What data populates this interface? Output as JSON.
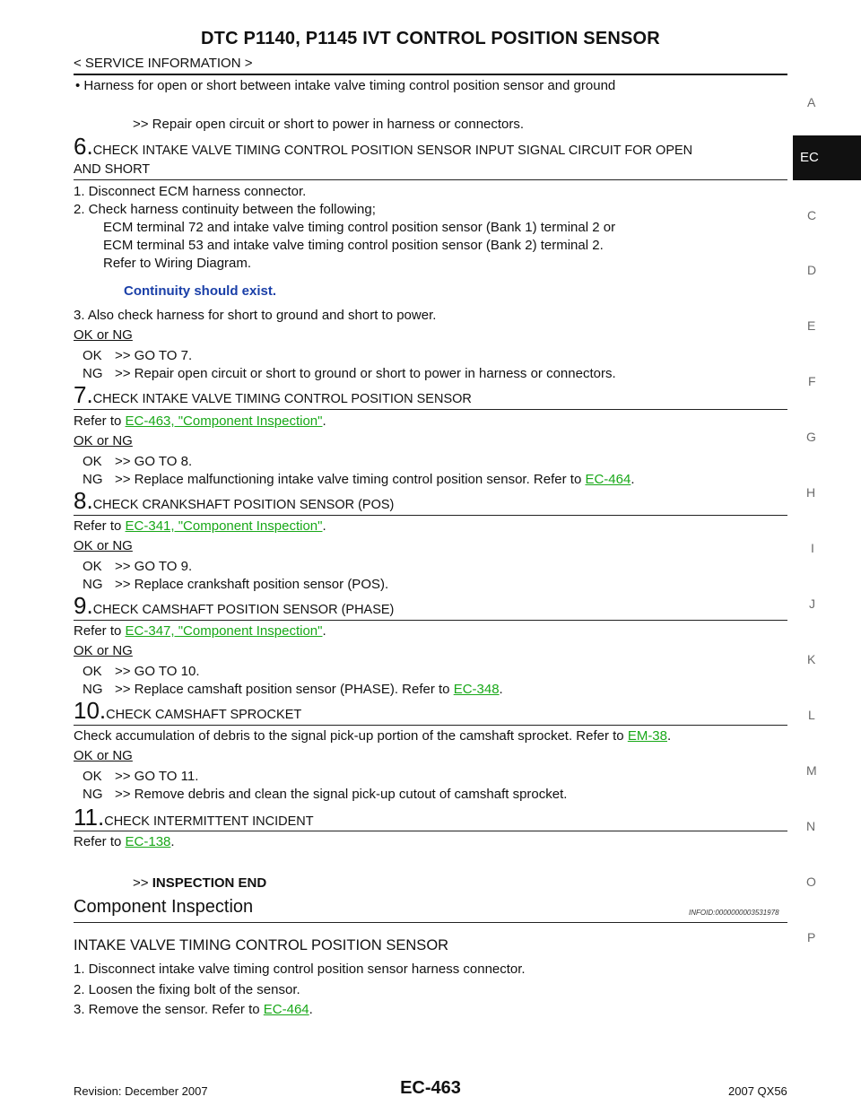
{
  "header": {
    "title": "DTC P1140, P1145 IVT CONTROL POSITION SENSOR",
    "section": "< SERVICE INFORMATION >"
  },
  "sidebar": {
    "letters": [
      "A",
      "EC",
      "C",
      "D",
      "E",
      "F",
      "G",
      "H",
      "I",
      "J",
      "K",
      "L",
      "M",
      "N",
      "O",
      "P"
    ],
    "active": "EC"
  },
  "body": {
    "bullet": "•  Harness for open or short between intake valve timing control position sensor and ground",
    "repair1": ">> Repair open circuit or short to power in harness or connectors.",
    "step6": {
      "num": "6.",
      "title_line1": "CHECK INTAKE VALVE TIMING CONTROL POSITION SENSOR INPUT SIGNAL CIRCUIT FOR OPEN",
      "title_line2": "AND SHORT",
      "items": [
        "1.  Disconnect ECM harness connector.",
        "2.  Check harness continuity between the following;",
        "ECM terminal 72 and intake valve timing control position sensor (Bank 1) terminal 2 or",
        "ECM terminal 53 and intake valve timing control position sensor (Bank 2) terminal 2.",
        "Refer to Wiring Diagram."
      ],
      "continuity": "Continuity should exist.",
      "item3": "3.  Also check harness for short to ground and short to power.",
      "okng": "OK or NG",
      "ok_label": "OK",
      "ok_text": ">> GO TO 7.",
      "ng_label": "NG",
      "ng_text": ">> Repair open circuit or short to ground or short to power in harness or connectors."
    },
    "step7": {
      "num": "7.",
      "title": "CHECK INTAKE VALVE TIMING CONTROL POSITION SENSOR",
      "refer_pre": "Refer to ",
      "refer_link": "EC-463, \"Component Inspection\"",
      "refer_post": ".",
      "okng": "OK or NG",
      "ok_label": "OK",
      "ok_text": ">> GO TO 8.",
      "ng_label": "NG",
      "ng_text": ">> Replace malfunctioning intake valve timing control position sensor. Refer to ",
      "ng_link": "EC-464",
      "ng_post": "."
    },
    "step8": {
      "num": "8.",
      "title": "CHECK CRANKSHAFT POSITION SENSOR (POS)",
      "refer_pre": "Refer to ",
      "refer_link": "EC-341, \"Component Inspection\"",
      "refer_post": ".",
      "okng": "OK or NG",
      "ok_label": "OK",
      "ok_text": ">> GO TO 9.",
      "ng_label": "NG",
      "ng_text": ">> Replace crankshaft position sensor (POS)."
    },
    "step9": {
      "num": "9.",
      "title": "CHECK CAMSHAFT POSITION SENSOR (PHASE)",
      "refer_pre": "Refer to ",
      "refer_link": "EC-347, \"Component Inspection\"",
      "refer_post": ".",
      "okng": "OK or NG",
      "ok_label": "OK",
      "ok_text": ">> GO TO 10.",
      "ng_label": "NG",
      "ng_text": ">> Replace camshaft position sensor (PHASE). Refer to ",
      "ng_link": "EC-348",
      "ng_post": "."
    },
    "step10": {
      "num": "10.",
      "title": "CHECK CAMSHAFT SPROCKET",
      "refer_pre": "Check accumulation of debris to the signal pick-up portion of the camshaft sprocket. Refer to ",
      "refer_link": "EM-38",
      "refer_post": ".",
      "okng": "OK or NG",
      "ok_label": "OK",
      "ok_text": ">> GO TO 11.",
      "ng_label": "NG",
      "ng_text": ">> Remove debris and clean the signal pick-up cutout of camshaft sprocket."
    },
    "step11": {
      "num": "11.",
      "title": "CHECK INTERMITTENT INCIDENT",
      "refer_pre": "Refer to ",
      "refer_link": "EC-138",
      "refer_post": ".",
      "end_pre": ">> ",
      "end_bold": "INSPECTION END"
    },
    "component": {
      "title": "Component Inspection",
      "infoid": "INFOID:0000000003531978",
      "subtitle": "INTAKE VALVE TIMING CONTROL POSITION SENSOR",
      "item1": "1.  Disconnect intake valve timing control position sensor harness connector.",
      "item2": "2.  Loosen the fixing bolt of the sensor.",
      "item3_pre": "3.  Remove the sensor. Refer to ",
      "item3_link": "EC-464",
      "item3_post": "."
    }
  },
  "footer": {
    "revision": "Revision: December 2007",
    "page": "EC-463",
    "model": "2007 QX56"
  },
  "colors": {
    "link": "#18a818",
    "note": "#1a3fa8",
    "tab_bg": "#111111"
  }
}
